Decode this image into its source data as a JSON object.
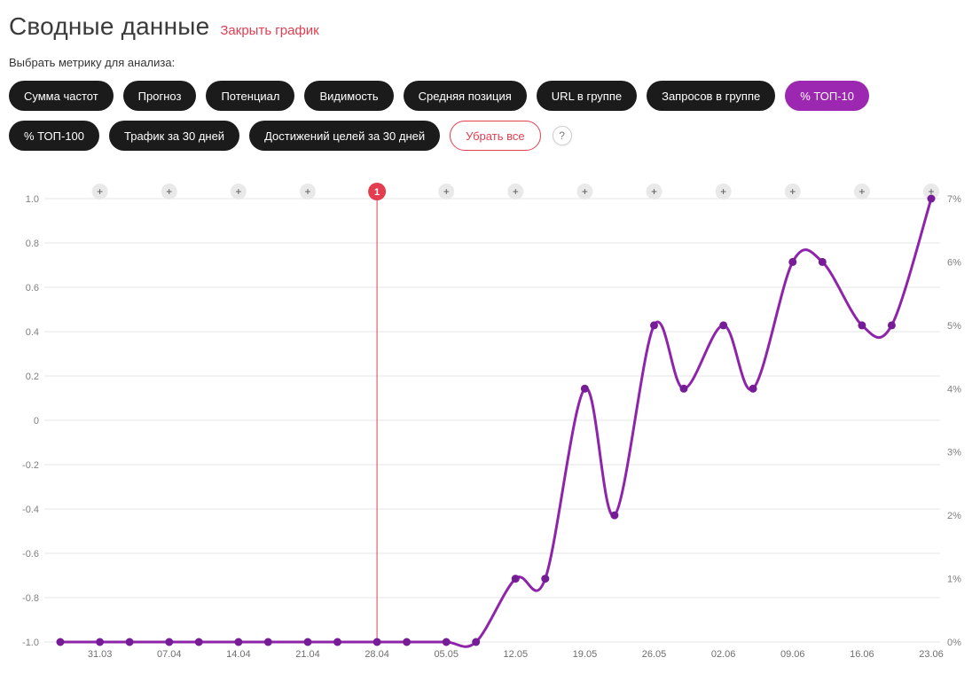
{
  "header": {
    "title": "Сводные данные",
    "close_link": "Закрыть график"
  },
  "metrics_label": "Выбрать метрику для анализа:",
  "metric_buttons": [
    {
      "id": "sum-frequencies",
      "label": "Сумма частот",
      "active": false,
      "row": 1
    },
    {
      "id": "forecast",
      "label": "Прогноз",
      "active": false,
      "row": 1
    },
    {
      "id": "potential",
      "label": "Потенциал",
      "active": false,
      "row": 1
    },
    {
      "id": "visibility",
      "label": "Видимость",
      "active": false,
      "row": 1
    },
    {
      "id": "average-position",
      "label": "Средняя позиция",
      "active": false,
      "row": 1
    },
    {
      "id": "url-in-group",
      "label": "URL в группе",
      "active": false,
      "row": 1
    },
    {
      "id": "queries-in-group",
      "label": "Запросов в группе",
      "active": false,
      "row": 1
    },
    {
      "id": "percent-top-10",
      "label": "% ТОП-10",
      "active": true,
      "row": 1
    },
    {
      "id": "percent-top-100",
      "label": "% ТОП-100",
      "active": false,
      "row": 2
    },
    {
      "id": "traffic-30-days",
      "label": "Трафик за 30 дней",
      "active": false,
      "row": 2
    },
    {
      "id": "goal-achievements-30-days",
      "label": "Достижений целей за 30 дней",
      "active": false,
      "row": 2
    }
  ],
  "clear_all_label": "Убрать все",
  "help_icon_label": "?",
  "colors": {
    "accent_purple": "#9c27b0",
    "line_purple": "#8e24aa",
    "point_purple": "#761c96",
    "annotation_red": "#e23e50",
    "grid_gray": "#e6e6e6",
    "axis_text_gray": "#7f7f7f",
    "tick_text_gray": "#6e6e6e",
    "plus_circle_gray": "#e9e9e9",
    "button_dark": "#1b1b1b"
  },
  "chart_data": {
    "type": "line",
    "title": "",
    "legend": "none",
    "grid": true,
    "series": [
      {
        "name": "% ТОП-10",
        "dates": [
          "27.03",
          "31.03",
          "03.04",
          "07.04",
          "10.04",
          "14.04",
          "17.04",
          "21.04",
          "24.04",
          "28.04",
          "01.05",
          "05.05",
          "08.05",
          "12.05",
          "15.05",
          "19.05",
          "22.05",
          "26.05",
          "29.05",
          "02.06",
          "05.06",
          "09.06",
          "12.06",
          "16.06",
          "19.06",
          "23.06"
        ],
        "day_offsets": [
          0,
          4,
          7,
          11,
          14,
          18,
          21,
          25,
          28,
          32,
          35,
          39,
          42,
          46,
          49,
          53,
          56,
          60,
          63,
          67,
          70,
          74,
          77,
          81,
          84,
          88
        ],
        "values_pct": [
          0,
          0,
          0,
          0,
          0,
          0,
          0,
          0,
          0,
          0,
          0,
          0,
          0,
          1,
          1,
          4,
          2,
          5,
          4,
          5,
          4,
          6,
          6,
          5,
          5,
          7
        ]
      }
    ],
    "x_ticks": [
      {
        "day": 4,
        "label": "31.03"
      },
      {
        "day": 11,
        "label": "07.04"
      },
      {
        "day": 18,
        "label": "14.04"
      },
      {
        "day": 25,
        "label": "21.04"
      },
      {
        "day": 32,
        "label": "28.04"
      },
      {
        "day": 39,
        "label": "05.05"
      },
      {
        "day": 46,
        "label": "12.05"
      },
      {
        "day": 53,
        "label": "19.05"
      },
      {
        "day": 60,
        "label": "26.05"
      },
      {
        "day": 67,
        "label": "02.06"
      },
      {
        "day": 74,
        "label": "09.06"
      },
      {
        "day": 81,
        "label": "16.06"
      },
      {
        "day": 88,
        "label": "23.06"
      }
    ],
    "y_left_tick_labels": [
      "1.0",
      "0.8",
      "0.6",
      "0.4",
      "0.2",
      "0",
      "-0.2",
      "-0.4",
      "-0.6",
      "-0.8",
      "-1.0"
    ],
    "y_right_tick_labels": [
      "7%",
      "6%",
      "5%",
      "4%",
      "3%",
      "2%",
      "1%",
      "0%"
    ],
    "left_axis_range": [
      -1.0,
      1.0
    ],
    "right_axis_range_pct": [
      0,
      7
    ],
    "annotation": {
      "day": 32,
      "label": "1"
    },
    "plus_marker_label": "+"
  }
}
